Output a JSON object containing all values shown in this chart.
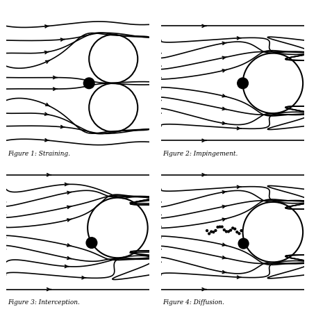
{
  "bg_color": "#ffffff",
  "fig_labels": [
    "Figure 1: Straining.",
    "Figure 2: Impingement.",
    "Figure 3: Interception.",
    "Figure 4: Diffusion."
  ],
  "line_color": "#000000",
  "lw": 1.2
}
